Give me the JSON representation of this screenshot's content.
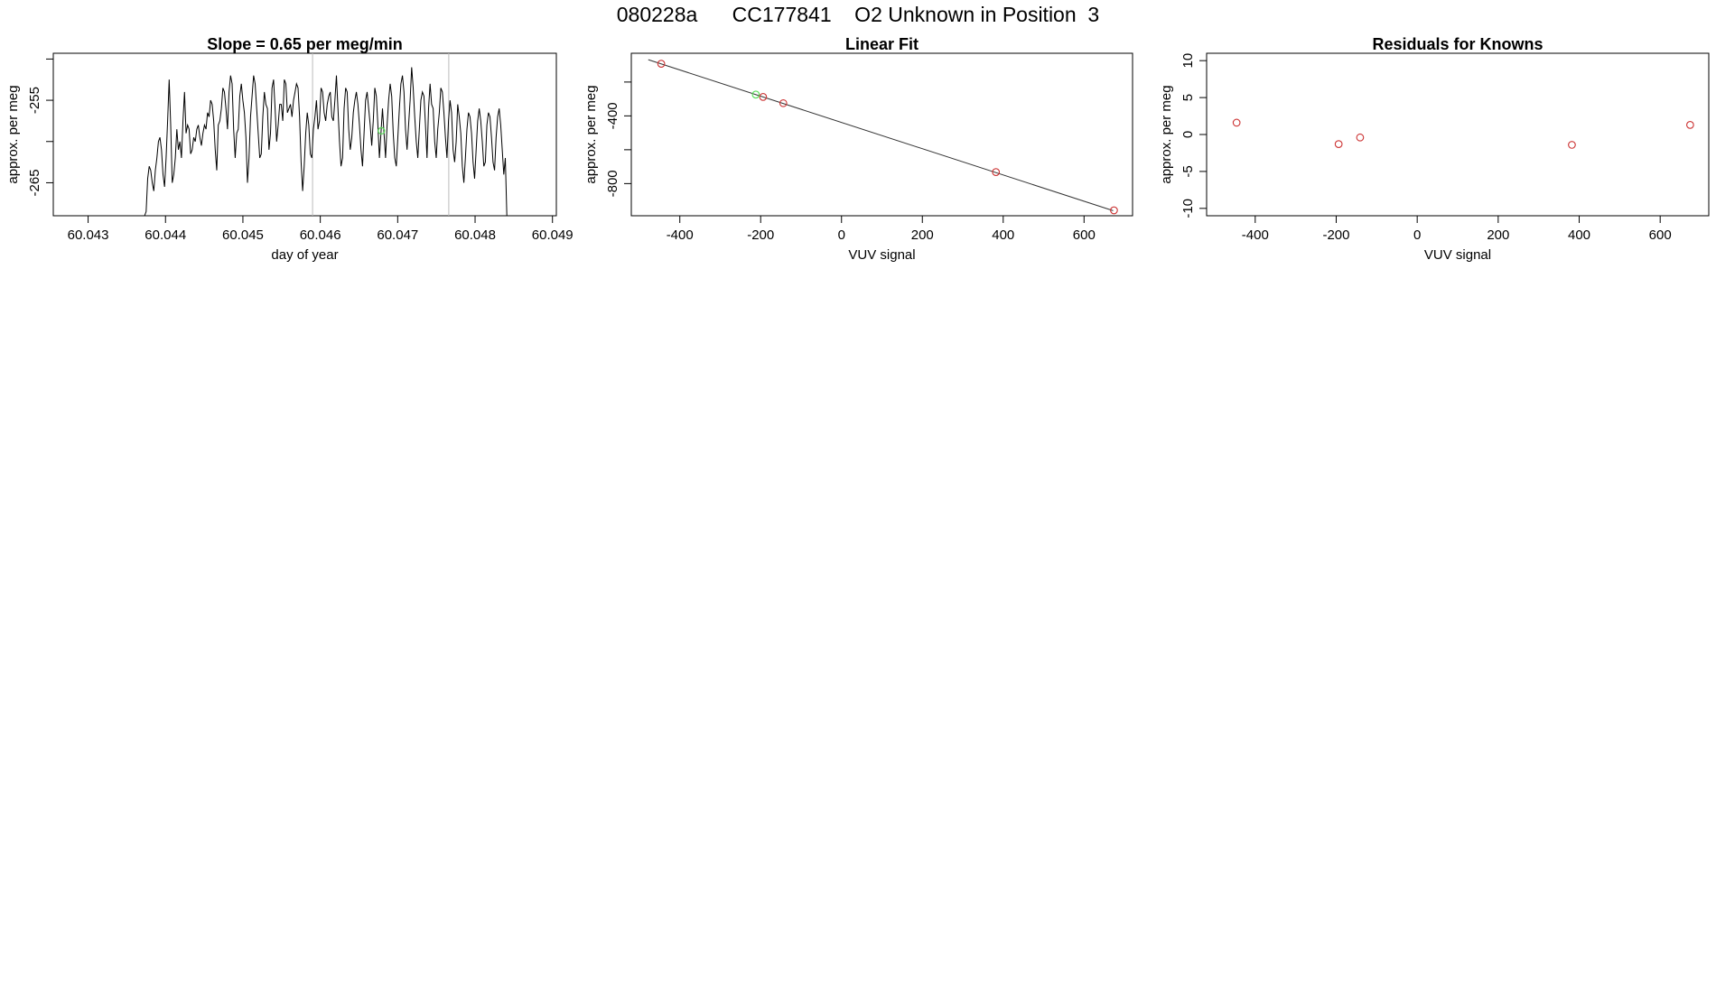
{
  "header": {
    "title": "080228a      CC177841    O2 Unknown in Position  3"
  },
  "chart_data": [
    {
      "type": "line",
      "title": "Slope =  0.65  per meg/min",
      "xlabel": "day of year",
      "ylabel": "approx. per meg",
      "xlim": [
        60.04255,
        60.04905
      ],
      "ylim": [
        -269.0,
        -249.3
      ],
      "x_ticks": [
        60.043,
        60.044,
        60.045,
        60.046,
        60.047,
        60.048,
        60.049
      ],
      "x_tick_labels": [
        "60.043",
        "60.044",
        "60.045",
        "60.046",
        "60.047",
        "60.048",
        "60.049"
      ],
      "y_ticks": [
        -250,
        -255,
        -260,
        -265
      ],
      "y_tick_labels": [
        "",
        "-255",
        "",
        "-265"
      ],
      "vlines": [
        60.0459,
        60.04766
      ],
      "vline_color": "#bbbbbb",
      "marker": {
        "x": 60.04679,
        "y": -258.7,
        "color": "#55dd55"
      },
      "line_color": "#000000",
      "series": [
        {
          "x_start": 60.04373,
          "x_end": 60.04841,
          "values": [
            -269.0,
            -268.5,
            -264.5,
            -263.0,
            -263.5,
            -265.0,
            -266.0,
            -263.5,
            -262.0,
            -260.0,
            -259.5,
            -261.0,
            -264.0,
            -265.5,
            -262.0,
            -257.5,
            -252.5,
            -258.0,
            -265.0,
            -264.0,
            -262.0,
            -258.5,
            -261.0,
            -260.0,
            -262.0,
            -257.5,
            -254.0,
            -259.0,
            -258.0,
            -258.5,
            -261.5,
            -261.0,
            -259.5,
            -260.0,
            -258.5,
            -258.0,
            -259.5,
            -260.5,
            -259.0,
            -258.0,
            -258.5,
            -256.5,
            -257.0,
            -255.0,
            -255.5,
            -257.5,
            -261.0,
            -263.5,
            -258.0,
            -257.5,
            -256.0,
            -253.5,
            -254.0,
            -256.0,
            -258.5,
            -254.0,
            -252.0,
            -253.0,
            -258.5,
            -262.0,
            -259.0,
            -258.5,
            -254.5,
            -253.0,
            -255.0,
            -256.5,
            -259.5,
            -265.0,
            -262.0,
            -257.0,
            -254.5,
            -252.0,
            -253.0,
            -256.0,
            -259.0,
            -262.0,
            -261.5,
            -257.0,
            -254.0,
            -255.5,
            -256.0,
            -261.0,
            -259.0,
            -253.5,
            -252.5,
            -256.0,
            -260.0,
            -258.0,
            -255.5,
            -255.5,
            -257.5,
            -252.5,
            -253.0,
            -256.5,
            -256.0,
            -255.5,
            -257.0,
            -255.0,
            -254.0,
            -253.0,
            -253.5,
            -257.0,
            -262.5,
            -266.0,
            -263.0,
            -259.0,
            -256.5,
            -258.0,
            -261.5,
            -262.0,
            -258.5,
            -257.0,
            -255.0,
            -258.5,
            -257.5,
            -253.5,
            -254.0,
            -256.5,
            -257.5,
            -255.5,
            -254.5,
            -254.0,
            -257.0,
            -257.5,
            -255.0,
            -252.0,
            -256.0,
            -260.0,
            -263.0,
            -262.0,
            -256.0,
            -253.5,
            -254.0,
            -258.5,
            -261.0,
            -259.5,
            -256.5,
            -255.0,
            -254.0,
            -255.5,
            -258.0,
            -261.0,
            -263.0,
            -259.0,
            -255.0,
            -254.0,
            -256.0,
            -258.0,
            -260.5,
            -257.5,
            -253.5,
            -254.5,
            -258.0,
            -262.0,
            -259.0,
            -256.0,
            -259.0,
            -262.0,
            -258.0,
            -255.0,
            -253.0,
            -254.5,
            -259.0,
            -262.0,
            -263.0,
            -259.5,
            -256.0,
            -253.0,
            -252.0,
            -254.0,
            -258.5,
            -261.0,
            -258.0,
            -255.0,
            -251.0,
            -253.5,
            -257.0,
            -260.0,
            -262.0,
            -258.5,
            -255.0,
            -254.0,
            -254.5,
            -258.0,
            -262.0,
            -256.0,
            -253.0,
            -255.5,
            -256.0,
            -260.0,
            -262.0,
            -258.5,
            -256.5,
            -253.5,
            -254.0,
            -256.5,
            -259.5,
            -262.0,
            -257.5,
            -255.0,
            -256.5,
            -261.0,
            -262.5,
            -260.0,
            -255.5,
            -257.0,
            -259.0,
            -263.0,
            -265.0,
            -262.0,
            -258.5,
            -256.5,
            -257.0,
            -259.0,
            -262.5,
            -264.5,
            -261.0,
            -257.5,
            -256.0,
            -257.5,
            -260.0,
            -263.0,
            -262.5,
            -258.0,
            -256.5,
            -257.0,
            -259.5,
            -262.5,
            -263.5,
            -259.5,
            -257.0,
            -256.0,
            -258.0,
            -261.0,
            -264.0,
            -262.0,
            -269.0
          ]
        }
      ]
    },
    {
      "type": "scatter",
      "title": "Linear Fit",
      "xlabel": "VUV signal",
      "ylabel": "approx. per meg",
      "xlim": [
        -520,
        720
      ],
      "ylim": [
        -990,
        -30
      ],
      "x_ticks": [
        -400,
        -200,
        0,
        200,
        400,
        600
      ],
      "x_tick_labels": [
        "-400",
        "-200",
        "0",
        "200",
        "400",
        "600"
      ],
      "y_ticks": [
        -200,
        -400,
        -600,
        -800
      ],
      "y_tick_labels": [
        "",
        "-400",
        "",
        "-800"
      ],
      "fit_line": {
        "x1": -478,
        "y1": -68,
        "x2": 672,
        "y2": -960,
        "color": "#333333"
      },
      "series": [
        {
          "name": "",
          "color": "#cc3333",
          "points": [
            [
              -446,
              -92
            ],
            [
              -194,
              -288
            ],
            [
              -144,
              -325
            ],
            [
              382,
              -732
            ],
            [
              674,
              -958
            ]
          ]
        },
        {
          "name": "",
          "color": "#55dd55",
          "points": [
            [
              -212,
              -274
            ]
          ]
        }
      ]
    },
    {
      "type": "scatter",
      "title": "Residuals for Knowns",
      "xlabel": "VUV signal",
      "ylabel": "approx. per meg",
      "xlim": [
        -520,
        720
      ],
      "ylim": [
        -11,
        11
      ],
      "x_ticks": [
        -400,
        -200,
        0,
        200,
        400,
        600
      ],
      "x_tick_labels": [
        "-400",
        "-200",
        "0",
        "200",
        "400",
        "600"
      ],
      "y_ticks": [
        10,
        5,
        0,
        -5,
        -10
      ],
      "y_tick_labels": [
        "10",
        "5",
        "0",
        "-5",
        "-10"
      ],
      "series": [
        {
          "name": "",
          "color": "#cc3333",
          "points": [
            [
              -446,
              1.6
            ],
            [
              -194,
              -1.3
            ],
            [
              -141,
              -0.4
            ],
            [
              382,
              -1.4
            ],
            [
              674,
              1.3
            ]
          ]
        }
      ]
    }
  ]
}
